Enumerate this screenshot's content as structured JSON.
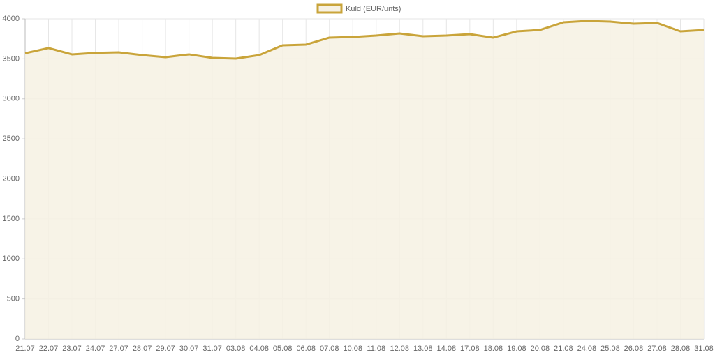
{
  "chart_data": {
    "type": "line",
    "categories": [
      "21.07",
      "22.07",
      "23.07",
      "24.07",
      "27.07",
      "28.07",
      "29.07",
      "30.07",
      "31.07",
      "03.08",
      "04.08",
      "05.08",
      "06.08",
      "07.08",
      "10.08",
      "11.08",
      "12.08",
      "13.08",
      "14.08",
      "17.08",
      "18.08",
      "19.08",
      "20.08",
      "21.08",
      "24.08",
      "25.08",
      "26.08",
      "27.08",
      "28.08",
      "31.08"
    ],
    "series": [
      {
        "name": "Kuld (EUR/unts)",
        "color": "#c9a43a",
        "area_color": "#f6f1e3",
        "values": [
          3570,
          3635,
          3556,
          3575,
          3582,
          3547,
          3521,
          3556,
          3512,
          3503,
          3547,
          3669,
          3678,
          3765,
          3773,
          3791,
          3817,
          3782,
          3791,
          3808,
          3765,
          3843,
          3861,
          3956,
          3974,
          3965,
          3939,
          3948,
          3843,
          3861
        ]
      }
    ],
    "ylim": [
      0,
      4000
    ],
    "yticks": [
      0,
      500,
      1000,
      1500,
      2000,
      2500,
      3000,
      3500,
      4000
    ],
    "grid": true,
    "legend": "top"
  }
}
